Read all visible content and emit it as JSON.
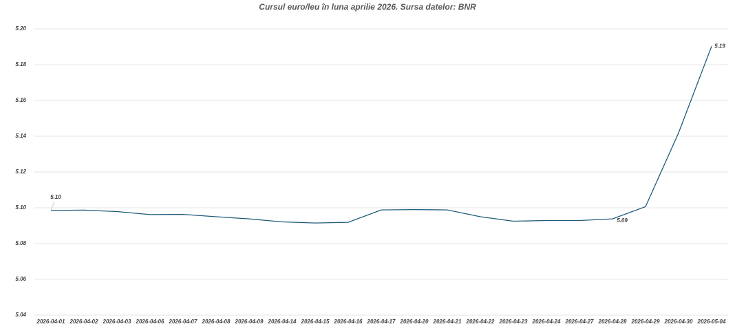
{
  "chart_data": {
    "type": "line",
    "title": "Cursul euro/leu în luna aprilie 2026. Sursa datelor: BNR",
    "categories": [
      "2026-04-01",
      "2026-04-02",
      "2026-04-03",
      "2026-04-06",
      "2026-04-07",
      "2026-04-08",
      "2026-04-09",
      "2026-04-14",
      "2026-04-15",
      "2026-04-16",
      "2026-04-17",
      "2026-04-20",
      "2026-04-21",
      "2026-04-22",
      "2026-04-23",
      "2026-04-24",
      "2026-04-27",
      "2026-04-28",
      "2026-04-29",
      "2026-04-30",
      "2026-05-04"
    ],
    "series": [
      {
        "name": "Cursul euro/leu",
        "color": "#1f5a7a",
        "values": [
          5.0985,
          5.0987,
          5.0979,
          5.0962,
          5.0963,
          5.095,
          5.0938,
          5.0921,
          5.0915,
          5.0919,
          5.0988,
          5.099,
          5.0988,
          5.095,
          5.0925,
          5.0929,
          5.0929,
          5.0938,
          5.1006,
          5.1419,
          5.1903
        ],
        "value_labels": [
          "5.10",
          null,
          null,
          null,
          null,
          null,
          null,
          null,
          null,
          null,
          null,
          null,
          null,
          null,
          null,
          null,
          null,
          "5.09",
          null,
          null,
          "5.19"
        ]
      }
    ],
    "ylim": [
      5.04,
      5.2
    ],
    "yticks": [
      5.04,
      5.06,
      5.08,
      {
        "value": 5.1,
        "label": "5.10"
      },
      5.12,
      5.14,
      5.16,
      5.18,
      {
        "value": 5.2,
        "label": "5.20"
      }
    ],
    "grid": true
  }
}
